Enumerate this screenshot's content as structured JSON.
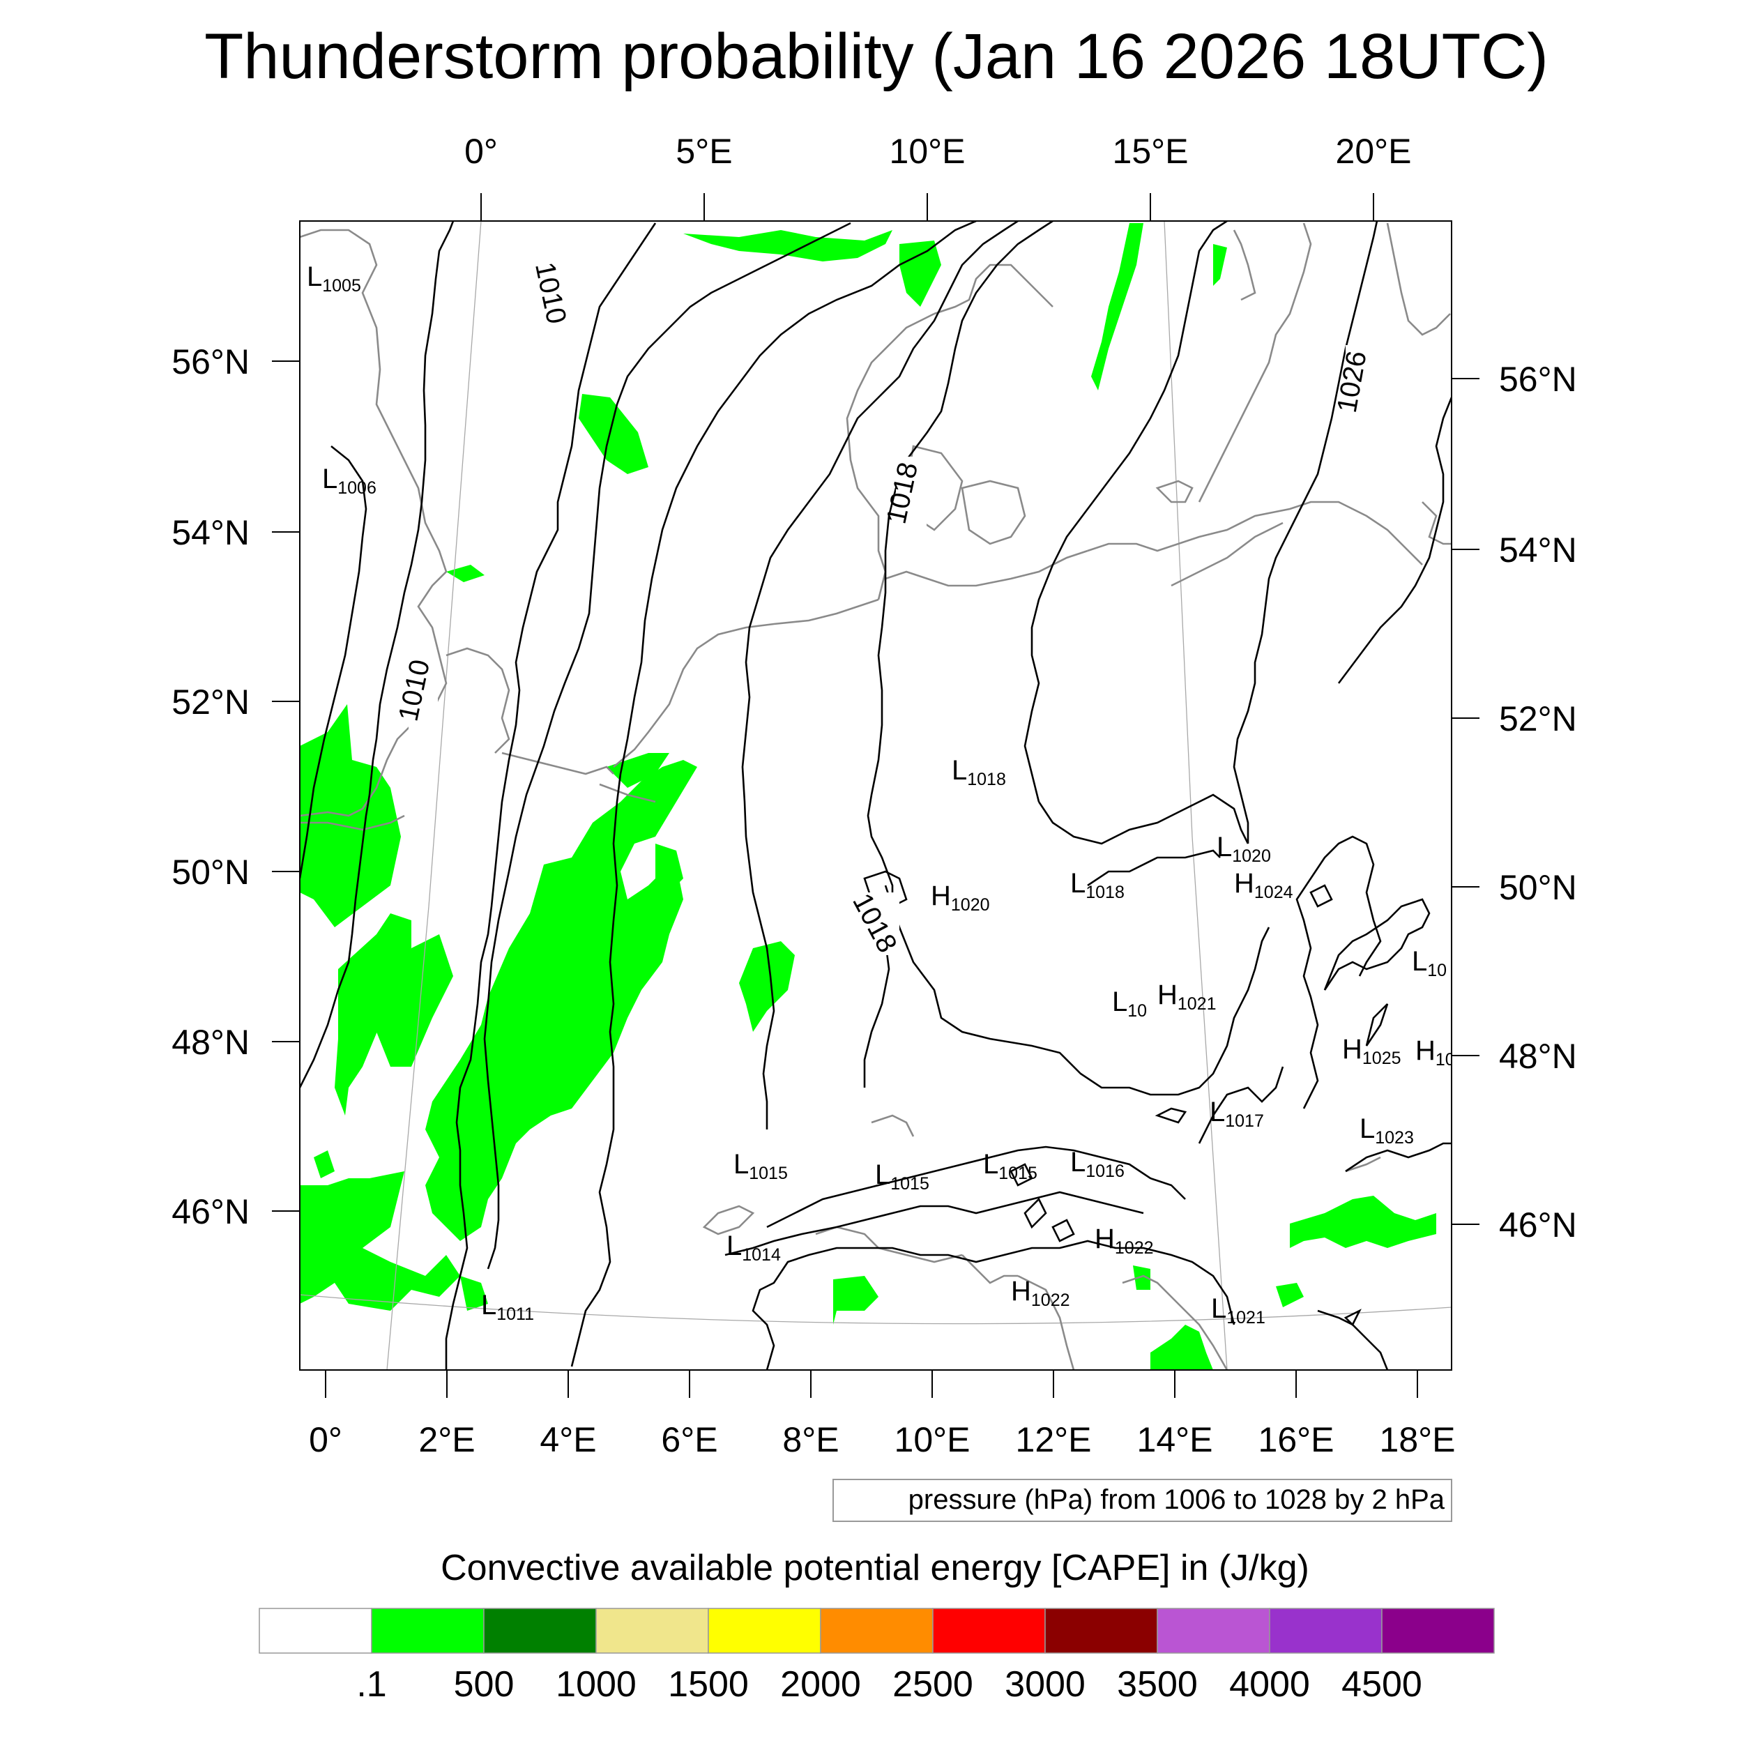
{
  "title": "Thunderstorm probability (Jan 16 2026 18UTC)",
  "top_lon_labels": [
    "0°",
    "5°E",
    "10°E",
    "15°E",
    "20°E"
  ],
  "bottom_lon_labels": [
    "0°",
    "2°E",
    "4°E",
    "6°E",
    "8°E",
    "10°E",
    "12°E",
    "14°E",
    "16°E",
    "18°E"
  ],
  "left_lat_labels": [
    "56°N",
    "54°N",
    "52°N",
    "50°N",
    "48°N",
    "46°N"
  ],
  "right_lat_labels": [
    "56°N",
    "54°N",
    "52°N",
    "50°N",
    "48°N",
    "46°N"
  ],
  "isobar_labels": [
    "1010",
    "1010",
    "1018",
    "1018",
    "1026"
  ],
  "pressure_centers": [
    {
      "type": "L",
      "value": "1005"
    },
    {
      "type": "L",
      "value": "1006"
    },
    {
      "type": "L",
      "value": "1018"
    },
    {
      "type": "L",
      "value": "1020"
    },
    {
      "type": "H",
      "value": "1020"
    },
    {
      "type": "L",
      "value": "1018"
    },
    {
      "type": "H",
      "value": "1024"
    },
    {
      "type": "L",
      "value": "10"
    },
    {
      "type": "L",
      "value": "10"
    },
    {
      "type": "H",
      "value": "1021"
    },
    {
      "type": "H",
      "value": "1025"
    },
    {
      "type": "H",
      "value": "10"
    },
    {
      "type": "L",
      "value": "1017"
    },
    {
      "type": "L",
      "value": "1023"
    },
    {
      "type": "L",
      "value": "1015"
    },
    {
      "type": "L",
      "value": "1015"
    },
    {
      "type": "L",
      "value": "1015"
    },
    {
      "type": "L",
      "value": "1016"
    },
    {
      "type": "L",
      "value": "1014"
    },
    {
      "type": "H",
      "value": "1022"
    },
    {
      "type": "H",
      "value": "1022"
    },
    {
      "type": "L",
      "value": "1011"
    },
    {
      "type": "L",
      "value": "1021"
    }
  ],
  "pressure_note": "pressure (hPa) from 1006 to 1028 by 2 hPa",
  "colorbar": {
    "title": "Convective available potential energy [CAPE] in (J/kg)",
    "colors": [
      "#ffffff",
      "#00ff00",
      "#008000",
      "#f0e68c",
      "#ffff00",
      "#ff8c00",
      "#ff0000",
      "#8b0000",
      "#ba55d3",
      "#9932cc",
      "#8b008b"
    ],
    "labels": [
      ".1",
      "500",
      "1000",
      "1500",
      "2000",
      "2500",
      "3000",
      "3500",
      "4000",
      "4500"
    ]
  }
}
